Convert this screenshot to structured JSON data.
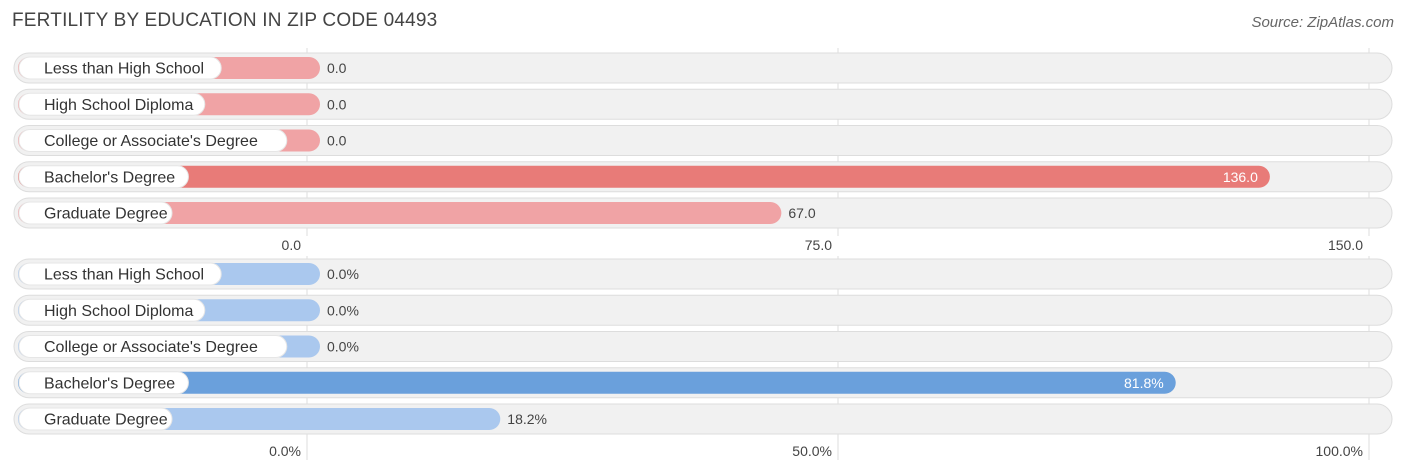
{
  "title": "FERTILITY BY EDUCATION IN ZIP CODE 04493",
  "source": "Source: ZipAtlas.com",
  "colors": {
    "count_bar": "#f0a3a5",
    "count_bar_highlight": "#e87b78",
    "percent_bar": "#aac8ee",
    "percent_bar_highlight": "#6aa0dc",
    "row_bg": "#f1f1f1",
    "row_border": "#dddddd",
    "grid": "#dddddd"
  },
  "chart_data": [
    {
      "type": "bar",
      "orientation": "horizontal",
      "categories": [
        "Less than High School",
        "High School Diploma",
        "College or Associate's Degree",
        "Bachelor's Degree",
        "Graduate Degree"
      ],
      "values": [
        0.0,
        0.0,
        0.0,
        136.0,
        67.0
      ],
      "value_labels": [
        "0.0",
        "0.0",
        "0.0",
        "136.0",
        "67.0"
      ],
      "highlight_index": 3,
      "xlim": [
        0,
        150
      ],
      "ticks": [
        0,
        75,
        150
      ],
      "tick_labels": [
        "0.0",
        "75.0",
        "150.0"
      ],
      "grid": true
    },
    {
      "type": "bar",
      "orientation": "horizontal",
      "categories": [
        "Less than High School",
        "High School Diploma",
        "College or Associate's Degree",
        "Bachelor's Degree",
        "Graduate Degree"
      ],
      "values": [
        0.0,
        0.0,
        0.0,
        81.8,
        18.2
      ],
      "value_labels": [
        "0.0%",
        "0.0%",
        "0.0%",
        "81.8%",
        "18.2%"
      ],
      "highlight_index": 3,
      "xlim": [
        0,
        100
      ],
      "ticks": [
        0,
        50,
        100
      ],
      "tick_labels": [
        "0.0%",
        "50.0%",
        "100.0%"
      ],
      "grid": true
    }
  ]
}
